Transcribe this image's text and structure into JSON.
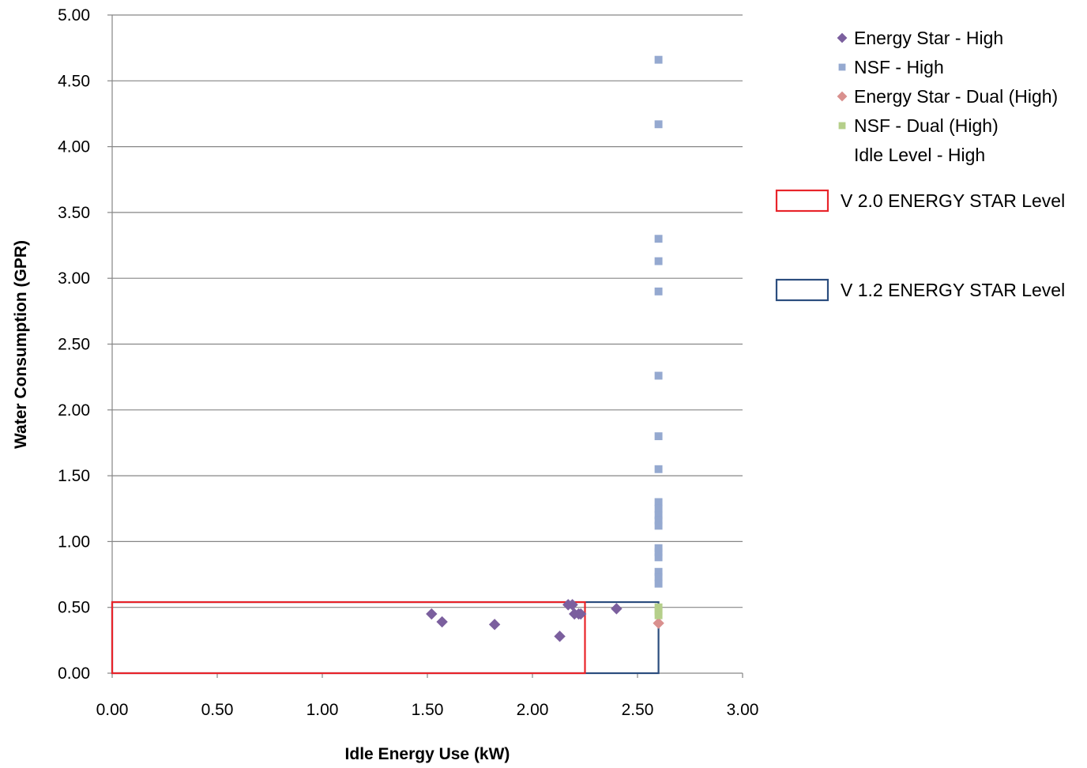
{
  "chart_data": {
    "type": "scatter",
    "xlabel": "Idle Energy Use (kW)",
    "ylabel": "Water Consumption (GPR)",
    "xlim": [
      0,
      3
    ],
    "ylim": [
      0,
      5
    ],
    "x_ticks": [
      "0.00",
      "0.50",
      "1.00",
      "1.50",
      "2.00",
      "2.50",
      "3.00"
    ],
    "y_ticks": [
      "0.00",
      "0.50",
      "1.00",
      "1.50",
      "2.00",
      "2.50",
      "3.00",
      "3.50",
      "4.00",
      "4.50",
      "5.00"
    ],
    "grid": "horizontal",
    "legend_position": "right",
    "series": [
      {
        "name": "Energy Star - High",
        "marker": "diamond",
        "color": "#7B5F9E",
        "points": [
          {
            "x": 1.52,
            "y": 0.45
          },
          {
            "x": 1.57,
            "y": 0.39
          },
          {
            "x": 1.82,
            "y": 0.37
          },
          {
            "x": 2.13,
            "y": 0.28
          },
          {
            "x": 2.17,
            "y": 0.52
          },
          {
            "x": 2.19,
            "y": 0.52
          },
          {
            "x": 2.2,
            "y": 0.45
          },
          {
            "x": 2.22,
            "y": 0.45
          },
          {
            "x": 2.23,
            "y": 0.45
          },
          {
            "x": 2.4,
            "y": 0.49
          }
        ]
      },
      {
        "name": "NSF - High",
        "marker": "square",
        "color": "#95A9D0",
        "points": [
          {
            "x": 2.6,
            "y": 4.66
          },
          {
            "x": 2.6,
            "y": 4.17
          },
          {
            "x": 2.6,
            "y": 3.3
          },
          {
            "x": 2.6,
            "y": 3.13
          },
          {
            "x": 2.6,
            "y": 2.9
          },
          {
            "x": 2.6,
            "y": 2.26
          },
          {
            "x": 2.6,
            "y": 1.8
          },
          {
            "x": 2.6,
            "y": 1.55
          },
          {
            "x": 2.6,
            "y": 1.3
          },
          {
            "x": 2.6,
            "y": 1.25
          },
          {
            "x": 2.6,
            "y": 1.2
          },
          {
            "x": 2.6,
            "y": 1.16
          },
          {
            "x": 2.6,
            "y": 1.12
          },
          {
            "x": 2.6,
            "y": 0.95
          },
          {
            "x": 2.6,
            "y": 0.92
          },
          {
            "x": 2.6,
            "y": 0.88
          },
          {
            "x": 2.6,
            "y": 0.77
          },
          {
            "x": 2.6,
            "y": 0.73
          },
          {
            "x": 2.6,
            "y": 0.68
          }
        ]
      },
      {
        "name": "Energy Star - Dual (High)",
        "marker": "diamond",
        "color": "#D9908E",
        "points": [
          {
            "x": 2.6,
            "y": 0.38
          }
        ]
      },
      {
        "name": "NSF - Dual (High)",
        "marker": "square",
        "color": "#B5CF8A",
        "points": [
          {
            "x": 2.6,
            "y": 0.5
          },
          {
            "x": 2.6,
            "y": 0.47
          },
          {
            "x": 2.6,
            "y": 0.44
          }
        ]
      },
      {
        "name": "Idle Level - High",
        "marker": "none",
        "color": "none",
        "points": []
      }
    ],
    "regions": [
      {
        "name": "V 2.0 ENERGY STAR Level",
        "color": "#E8242A",
        "x": [
          0,
          2.25
        ],
        "y": [
          0,
          0.54
        ]
      },
      {
        "name": "V 1.2 ENERGY STAR Level",
        "color": "#2B4D7E",
        "x": [
          0,
          2.6
        ],
        "y": [
          0,
          0.54
        ]
      }
    ]
  }
}
